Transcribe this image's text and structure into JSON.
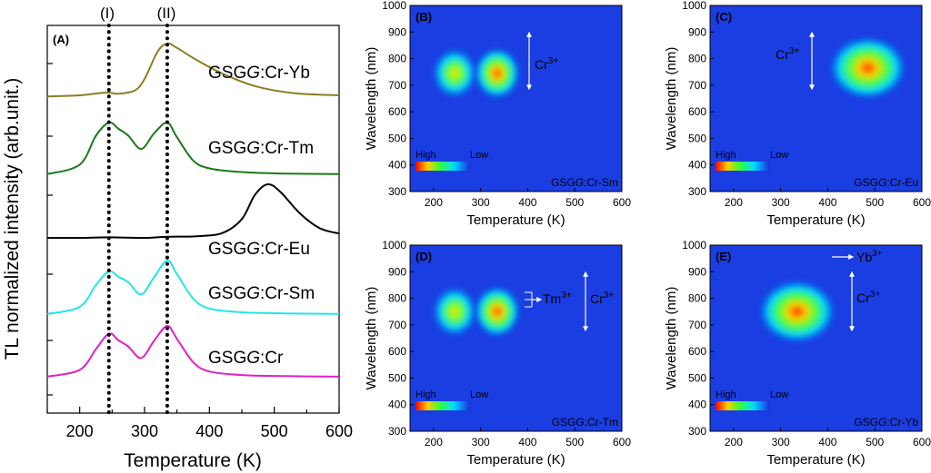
{
  "figure": {
    "peak_markers": [
      "(I)",
      "(II)"
    ]
  },
  "chart_data": [
    {
      "panel": "(A)",
      "type": "line",
      "xlabel": "Temperature (K)",
      "ylabel": "TL normalized intensity (arb.unit.)",
      "xlim": [
        150,
        600
      ],
      "xticks": [
        200,
        300,
        400,
        500,
        600
      ],
      "series": [
        {
          "name": "GSGG:Cr-Yb",
          "color": "#8c7d23",
          "x": [
            150,
            200,
            230,
            245,
            260,
            285,
            300,
            320,
            335,
            350,
            380,
            420,
            470,
            530,
            600
          ],
          "y": [
            0.03,
            0.05,
            0.09,
            0.1,
            0.08,
            0.14,
            0.35,
            0.85,
            1.0,
            0.92,
            0.7,
            0.45,
            0.22,
            0.09,
            0.05
          ]
        },
        {
          "name": "GSGG:Cr-Tm",
          "color": "#1a7a1a",
          "x": [
            150,
            200,
            225,
            245,
            260,
            275,
            295,
            315,
            335,
            350,
            375,
            400,
            450,
            520,
            600
          ],
          "y": [
            0.02,
            0.2,
            0.75,
            1.0,
            0.88,
            0.75,
            0.5,
            0.8,
            1.0,
            0.72,
            0.28,
            0.13,
            0.06,
            0.03,
            0.02
          ]
        },
        {
          "name": "GSGG:Cr-Eu",
          "color": "#000000",
          "x": [
            150,
            200,
            245,
            300,
            335,
            380,
            420,
            450,
            470,
            490,
            510,
            540,
            570,
            600
          ],
          "y": [
            0.0,
            0.0,
            0.01,
            0.0,
            0.02,
            0.03,
            0.09,
            0.35,
            0.8,
            1.0,
            0.85,
            0.45,
            0.18,
            0.08
          ]
        },
        {
          "name": "GSGG:Cr-Sm",
          "color": "#22e6e6",
          "x": [
            150,
            200,
            225,
            245,
            260,
            275,
            295,
            315,
            335,
            350,
            375,
            400,
            450,
            520,
            600
          ],
          "y": [
            0.02,
            0.15,
            0.55,
            0.8,
            0.7,
            0.6,
            0.38,
            0.7,
            1.0,
            0.75,
            0.3,
            0.12,
            0.05,
            0.03,
            0.02
          ]
        },
        {
          "name": "GSGG:Cr",
          "color": "#e020c8",
          "x": [
            150,
            200,
            225,
            245,
            260,
            275,
            295,
            315,
            335,
            350,
            375,
            400,
            450,
            520,
            600
          ],
          "y": [
            0.02,
            0.15,
            0.55,
            0.85,
            0.72,
            0.6,
            0.38,
            0.72,
            1.0,
            0.75,
            0.3,
            0.12,
            0.05,
            0.03,
            0.02
          ]
        }
      ],
      "reference_lines": [
        {
          "label": "(I)",
          "x": 245
        },
        {
          "label": "(II)",
          "x": 335
        }
      ]
    },
    {
      "panel": "(B)",
      "type": "heatmap",
      "sample": "GSGG:Cr-Sm",
      "xlabel": "Temperature (K)",
      "ylabel": "Wavelength (nm)",
      "xlim": [
        150,
        600
      ],
      "ylim": [
        300,
        1000
      ],
      "colorbar": [
        "High",
        "Low"
      ],
      "annotation": "Cr3+",
      "peaks": [
        {
          "x": 245,
          "y": 745,
          "intensity": 0.7
        },
        {
          "x": 335,
          "y": 745,
          "intensity": 1.0
        }
      ]
    },
    {
      "panel": "(C)",
      "type": "heatmap",
      "sample": "GSGG:Cr-Eu",
      "xlabel": "Temperature (K)",
      "ylabel": "Wavelength (nm)",
      "xlim": [
        150,
        600
      ],
      "ylim": [
        300,
        1000
      ],
      "colorbar": [
        "High",
        "Low"
      ],
      "annotation": "Cr3+",
      "peaks": [
        {
          "x": 485,
          "y": 765,
          "intensity": 1.0
        }
      ]
    },
    {
      "panel": "(D)",
      "type": "heatmap",
      "sample": "GSGG:Cr-Tm",
      "xlabel": "Temperature (K)",
      "ylabel": "Wavelength (nm)",
      "xlim": [
        150,
        600
      ],
      "ylim": [
        300,
        1000
      ],
      "colorbar": [
        "High",
        "Low"
      ],
      "annotation": "Cr3+",
      "annotation2": "Tm3+",
      "peaks": [
        {
          "x": 245,
          "y": 750,
          "intensity": 0.85
        },
        {
          "x": 335,
          "y": 750,
          "intensity": 1.0
        }
      ]
    },
    {
      "panel": "(E)",
      "type": "heatmap",
      "sample": "GSGG:Cr-Yb",
      "xlabel": "Temperature (K)",
      "ylabel": "Wavelength (nm)",
      "xlim": [
        150,
        600
      ],
      "ylim": [
        300,
        1000
      ],
      "colorbar": [
        "High",
        "Low"
      ],
      "annotation": "Cr3+",
      "annotation2": "Yb3+",
      "peaks": [
        {
          "x": 335,
          "y": 750,
          "intensity": 1.0
        }
      ]
    }
  ]
}
